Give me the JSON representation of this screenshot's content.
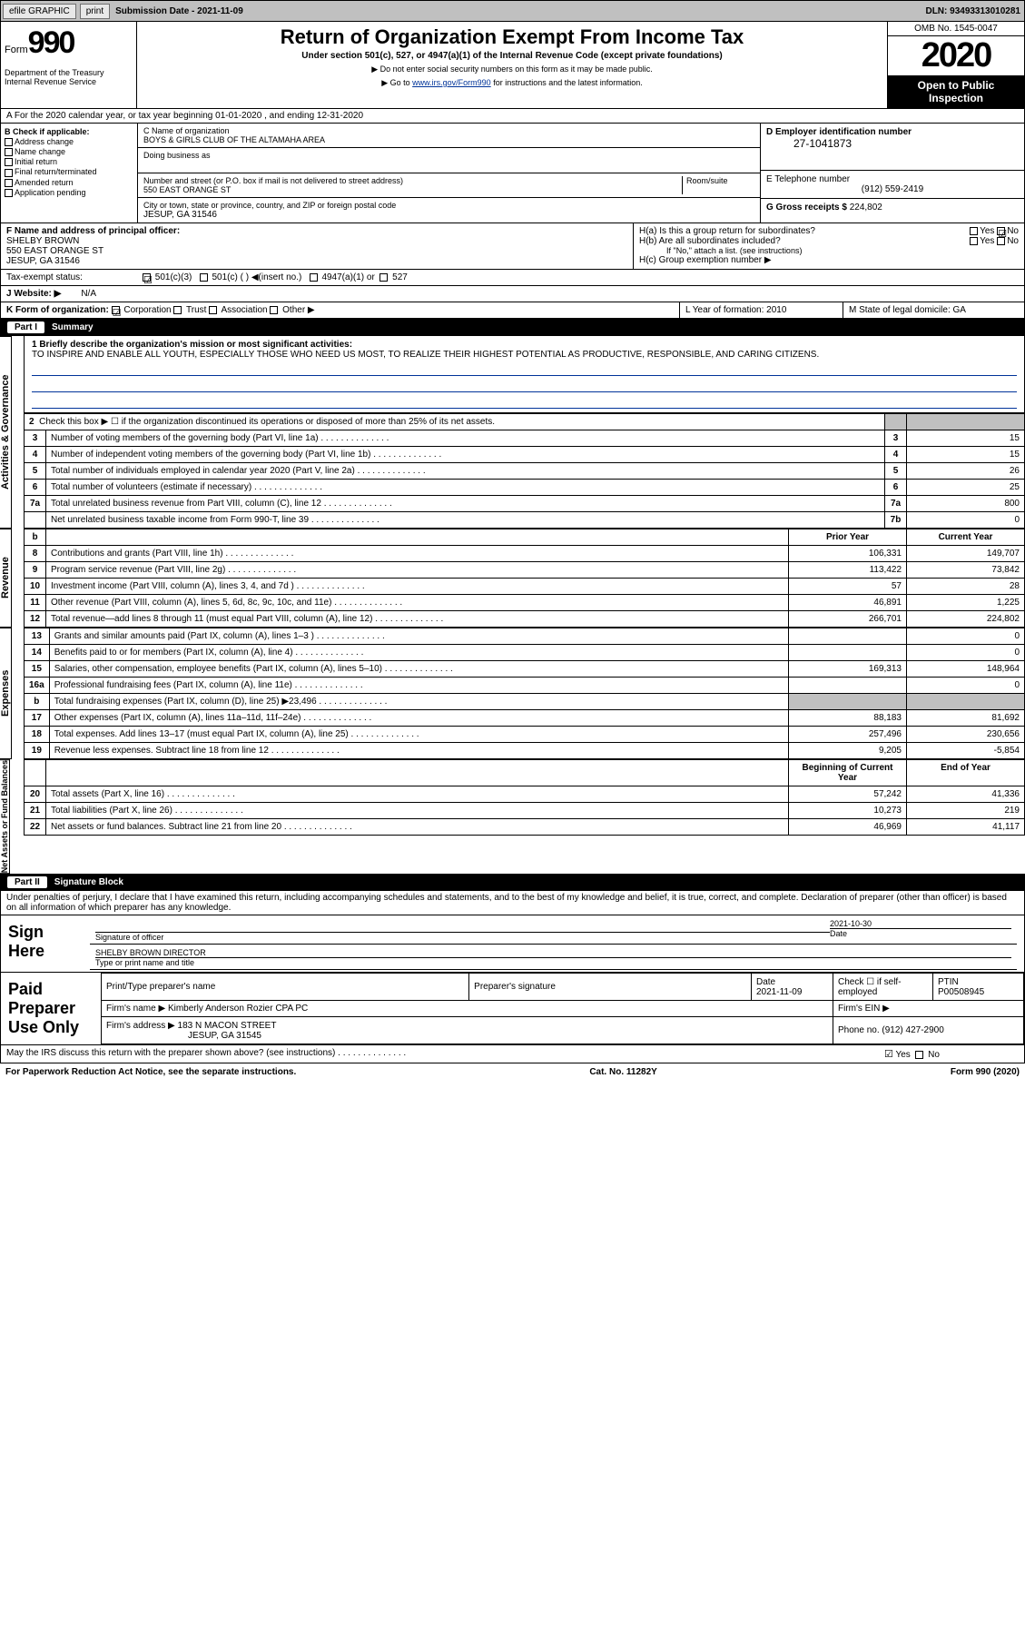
{
  "topbar": {
    "efile": "efile GRAPHIC",
    "print": "print",
    "sub_label": "Submission Date - 2021-11-09",
    "dln": "DLN: 93493313010281"
  },
  "header": {
    "form_word": "Form",
    "form_num": "990",
    "dept": "Department of the Treasury\nInternal Revenue Service",
    "title": "Return of Organization Exempt From Income Tax",
    "subtitle": "Under section 501(c), 527, or 4947(a)(1) of the Internal Revenue Code (except private foundations)",
    "note1": "▶ Do not enter social security numbers on this form as it may be made public.",
    "note2_pre": "▶ Go to ",
    "note2_link": "www.irs.gov/Form990",
    "note2_post": " for instructions and the latest information.",
    "omb": "OMB No. 1545-0047",
    "year": "2020",
    "open": "Open to Public Inspection"
  },
  "line_a": "A For the 2020 calendar year, or tax year beginning 01-01-2020    , and ending 12-31-2020",
  "box_b": {
    "title": "B Check if applicable:",
    "opts": [
      "Address change",
      "Name change",
      "Initial return",
      "Final return/terminated",
      "Amended return",
      "Application pending"
    ]
  },
  "box_c": {
    "c_label": "C Name of organization",
    "org": "BOYS & GIRLS CLUB OF THE ALTAMAHA AREA",
    "dba_label": "Doing business as",
    "addr_label": "Number and street (or P.O. box if mail is not delivered to street address)",
    "addr": "550 EAST ORANGE ST",
    "room": "Room/suite",
    "city_label": "City or town, state or province, country, and ZIP or foreign postal code",
    "city": "JESUP, GA  31546"
  },
  "box_d": {
    "label": "D Employer identification number",
    "val": "27-1041873"
  },
  "box_e": {
    "label": "E Telephone number",
    "val": "(912) 559-2419"
  },
  "box_g": {
    "label": "G Gross receipts $",
    "val": "224,802"
  },
  "box_f": {
    "label": "F  Name and address of principal officer:",
    "name": "SHELBY BROWN",
    "addr1": "550 EAST ORANGE ST",
    "addr2": "JESUP, GA  31546"
  },
  "box_h": {
    "a": "H(a)  Is this a group return for subordinates?",
    "a_yes": "Yes",
    "a_no": "No",
    "b": "H(b)  Are all subordinates included?",
    "b_note": "If \"No,\" attach a list. (see instructions)",
    "c": "H(c)  Group exemption number ▶"
  },
  "tax_status": {
    "label": "Tax-exempt status:",
    "c3": "501(c)(3)",
    "c": "501(c) (  ) ◀(insert no.)",
    "a1": "4947(a)(1) or",
    "s527": "527"
  },
  "website": {
    "label": "J   Website: ▶",
    "val": "N/A"
  },
  "line_k": {
    "k": "K Form of organization:",
    "opts": [
      "Corporation",
      "Trust",
      "Association",
      "Other ▶"
    ],
    "l": "L Year of formation: 2010",
    "m": "M State of legal domicile: GA"
  },
  "part1": {
    "num": "Part I",
    "title": "Summary"
  },
  "mission": {
    "q": "1  Briefly describe the organization's mission or most significant activities:",
    "text": "TO INSPIRE AND ENABLE ALL YOUTH, ESPECIALLY THOSE WHO NEED US MOST, TO REALIZE THEIR HIGHEST POTENTIAL AS PRODUCTIVE, RESPONSIBLE, AND CARING CITIZENS."
  },
  "side": {
    "act_gov": "Activities & Governance",
    "rev": "Revenue",
    "exp": "Expenses",
    "net": "Net Assets or Fund Balances"
  },
  "gov_lines": {
    "l2": "Check this box ▶ ☐  if the organization discontinued its operations or disposed of more than 25% of its net assets.",
    "rows": [
      {
        "n": "3",
        "t": "Number of voting members of the governing body (Part VI, line 1a)",
        "box": "3",
        "v": "15"
      },
      {
        "n": "4",
        "t": "Number of independent voting members of the governing body (Part VI, line 1b)",
        "box": "4",
        "v": "15"
      },
      {
        "n": "5",
        "t": "Total number of individuals employed in calendar year 2020 (Part V, line 2a)",
        "box": "5",
        "v": "26"
      },
      {
        "n": "6",
        "t": "Total number of volunteers (estimate if necessary)",
        "box": "6",
        "v": "25"
      },
      {
        "n": "7a",
        "t": "Total unrelated business revenue from Part VIII, column (C), line 12",
        "box": "7a",
        "v": "800"
      },
      {
        "n": " ",
        "t": "Net unrelated business taxable income from Form 990-T, line 39",
        "box": "7b",
        "v": "0"
      }
    ]
  },
  "two_col_hdr": {
    "b": "b",
    "py": "Prior Year",
    "cy": "Current Year"
  },
  "revenue_rows": [
    {
      "n": "8",
      "t": "Contributions and grants (Part VIII, line 1h)",
      "py": "106,331",
      "cy": "149,707"
    },
    {
      "n": "9",
      "t": "Program service revenue (Part VIII, line 2g)",
      "py": "113,422",
      "cy": "73,842"
    },
    {
      "n": "10",
      "t": "Investment income (Part VIII, column (A), lines 3, 4, and 7d )",
      "py": "57",
      "cy": "28"
    },
    {
      "n": "11",
      "t": "Other revenue (Part VIII, column (A), lines 5, 6d, 8c, 9c, 10c, and 11e)",
      "py": "46,891",
      "cy": "1,225"
    },
    {
      "n": "12",
      "t": "Total revenue—add lines 8 through 11 (must equal Part VIII, column (A), line 12)",
      "py": "266,701",
      "cy": "224,802"
    }
  ],
  "expense_rows": [
    {
      "n": "13",
      "t": "Grants and similar amounts paid (Part IX, column (A), lines 1–3 )",
      "py": "",
      "cy": "0"
    },
    {
      "n": "14",
      "t": "Benefits paid to or for members (Part IX, column (A), line 4)",
      "py": "",
      "cy": "0"
    },
    {
      "n": "15",
      "t": "Salaries, other compensation, employee benefits (Part IX, column (A), lines 5–10)",
      "py": "169,313",
      "cy": "148,964"
    },
    {
      "n": "16a",
      "t": "Professional fundraising fees (Part IX, column (A), line 11e)",
      "py": "",
      "cy": "0"
    },
    {
      "n": "b",
      "t": "Total fundraising expenses (Part IX, column (D), line 25) ▶23,496",
      "py": "SHADE",
      "cy": "SHADE"
    },
    {
      "n": "17",
      "t": "Other expenses (Part IX, column (A), lines 11a–11d, 11f–24e)",
      "py": "88,183",
      "cy": "81,692"
    },
    {
      "n": "18",
      "t": "Total expenses. Add lines 13–17 (must equal Part IX, column (A), line 25)",
      "py": "257,496",
      "cy": "230,656"
    },
    {
      "n": "19",
      "t": "Revenue less expenses. Subtract line 18 from line 12",
      "py": "9,205",
      "cy": "-5,854"
    }
  ],
  "net_hdr": {
    "b": "Beginning of Current Year",
    "e": "End of Year"
  },
  "net_rows": [
    {
      "n": "20",
      "t": "Total assets (Part X, line 16)",
      "py": "57,242",
      "cy": "41,336"
    },
    {
      "n": "21",
      "t": "Total liabilities (Part X, line 26)",
      "py": "10,273",
      "cy": "219"
    },
    {
      "n": "22",
      "t": "Net assets or fund balances. Subtract line 21 from line 20",
      "py": "46,969",
      "cy": "41,117"
    }
  ],
  "part2": {
    "num": "Part II",
    "title": "Signature Block"
  },
  "penalties": "Under penalties of perjury, I declare that I have examined this return, including accompanying schedules and statements, and to the best of my knowledge and belief, it is true, correct, and complete. Declaration of preparer (other than officer) is based on all information of which preparer has any knowledge.",
  "sign": {
    "here": "Sign Here",
    "sig_label": "Signature of officer",
    "date": "2021-10-30",
    "date_label": "Date",
    "name": "SHELBY BROWN  DIRECTOR",
    "name_label": "Type or print name and title"
  },
  "paid": {
    "title": "Paid Preparer Use Only",
    "h1": "Print/Type preparer's name",
    "h2": "Preparer's signature",
    "h3": "Date",
    "h3v": "2021-11-09",
    "h4": "Check ☐ if self-employed",
    "h5": "PTIN",
    "h5v": "P00508945",
    "firm_label": "Firm's name    ▶",
    "firm": "Kimberly Anderson Rozier CPA PC",
    "ein_label": "Firm's EIN ▶",
    "addr_label": "Firm's address ▶",
    "addr": "183 N MACON STREET",
    "addr2": "JESUP, GA  31545",
    "phone_label": "Phone no.",
    "phone": "(912) 427-2900"
  },
  "discuss": {
    "q": "May the IRS discuss this return with the preparer shown above? (see instructions)",
    "yes": "Yes",
    "no": "No"
  },
  "footer": {
    "left": "For Paperwork Reduction Act Notice, see the separate instructions.",
    "mid": "Cat. No. 11282Y",
    "right": "Form 990 (2020)"
  },
  "colors": {
    "link": "#003399",
    "hdr_bg": "#000000",
    "shade": "#c0c0c0"
  }
}
